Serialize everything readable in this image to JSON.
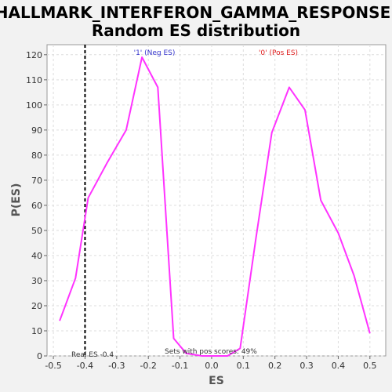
{
  "chart_data": {
    "type": "line",
    "title_line1": "HALLMARK_INTERFERON_GAMMA_RESPONSE:",
    "title_line2": "Random ES distribution",
    "xlabel": "ES",
    "ylabel": "P(ES)",
    "xlim": [
      -0.52,
      0.55
    ],
    "ylim": [
      0,
      124
    ],
    "xticks": [
      -0.5,
      -0.4,
      -0.3,
      -0.2,
      -0.1,
      0.0,
      0.1,
      0.2,
      0.3,
      0.4,
      0.5
    ],
    "xtick_labels": [
      "-0.5",
      "-0.4",
      "-0.3",
      "-0.2",
      "-0.1",
      "0.0",
      "0.1",
      "0.2",
      "0.3",
      "0.4",
      "0.5"
    ],
    "yticks": [
      0,
      10,
      20,
      30,
      40,
      50,
      60,
      70,
      80,
      90,
      100,
      110,
      120
    ],
    "ytick_labels": [
      "0",
      "10",
      "20",
      "30",
      "40",
      "50",
      "60",
      "70",
      "80",
      "90",
      "100",
      "110",
      "120"
    ],
    "grid": true,
    "series": [
      {
        "color": "#ff33ff",
        "x": [
          -0.48,
          -0.43,
          -0.39,
          -0.33,
          -0.27,
          -0.22,
          -0.17,
          -0.12,
          -0.08,
          -0.03,
          0.02,
          0.05,
          0.09,
          0.14,
          0.19,
          0.245,
          0.295,
          0.345,
          0.4,
          0.45,
          0.5
        ],
        "y": [
          14,
          31,
          63,
          77,
          90,
          119,
          107,
          7,
          1,
          0,
          0,
          0,
          3,
          47,
          89,
          107,
          98,
          62,
          49,
          32,
          9
        ]
      }
    ],
    "real_es": -0.4,
    "annotations": {
      "neg_label": "'1' (Neg ES)",
      "pos_label": "'0' (Pos ES)",
      "real_es_label": "Real ES -0.4",
      "pos_scores_label": "Sets with pos scores: 49%"
    },
    "colors": {
      "neg_label": "#3333cc",
      "pos_label": "#e02020",
      "real_es_line": "#000000",
      "grid": "#dddddd"
    }
  }
}
